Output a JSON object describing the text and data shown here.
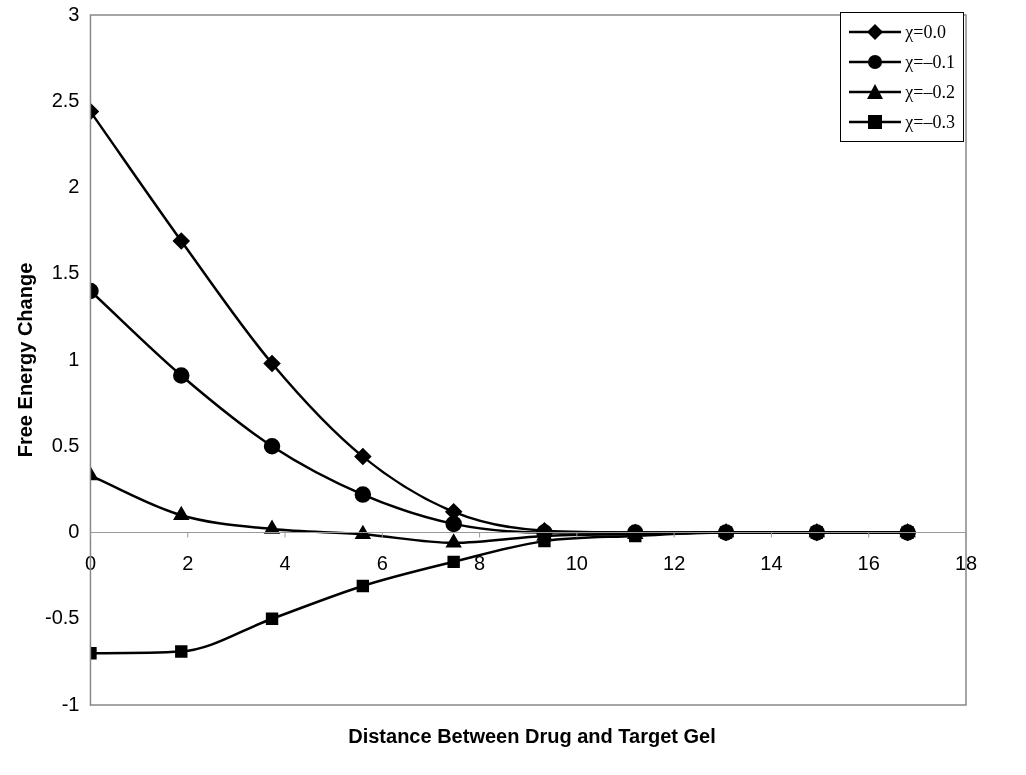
{
  "chart_data": {
    "type": "line",
    "xlabel": "Distance Between Drug and Target Gel",
    "ylabel": "Free Energy Change",
    "x": [
      0,
      1.867,
      3.733,
      5.6,
      7.467,
      9.333,
      11.2,
      13.067,
      14.933,
      16.8
    ],
    "series": [
      {
        "name": "χ=0.0",
        "color": "#000000",
        "marker": "diamond",
        "values": [
          2.44,
          1.69,
          0.98,
          0.44,
          0.12,
          0.01,
          0,
          0,
          0,
          0
        ]
      },
      {
        "name": "χ=–0.1",
        "color": "#000000",
        "marker": "circle",
        "values": [
          1.4,
          0.91,
          0.5,
          0.22,
          0.05,
          0,
          0,
          0,
          0,
          0
        ]
      },
      {
        "name": "χ=–0.2",
        "color": "#000000",
        "marker": "triangle",
        "values": [
          0.33,
          0.1,
          0.02,
          -0.01,
          -0.06,
          -0.02,
          -0.01,
          0,
          0,
          0
        ]
      },
      {
        "name": "χ=–0.3",
        "color": "#000000",
        "marker": "square",
        "values": [
          -0.7,
          -0.69,
          -0.5,
          -0.31,
          -0.17,
          -0.05,
          -0.02,
          0,
          0,
          0
        ]
      }
    ],
    "xlim": [
      0,
      18
    ],
    "xticks": [
      0,
      2,
      4,
      6,
      8,
      10,
      12,
      14,
      16,
      18
    ],
    "ylim": [
      -1,
      3
    ],
    "yticks": [
      -1,
      -0.5,
      0,
      0.5,
      1,
      1.5,
      2,
      2.5,
      3
    ],
    "grid": false,
    "legend": "top right",
    "line_style": "solid"
  }
}
